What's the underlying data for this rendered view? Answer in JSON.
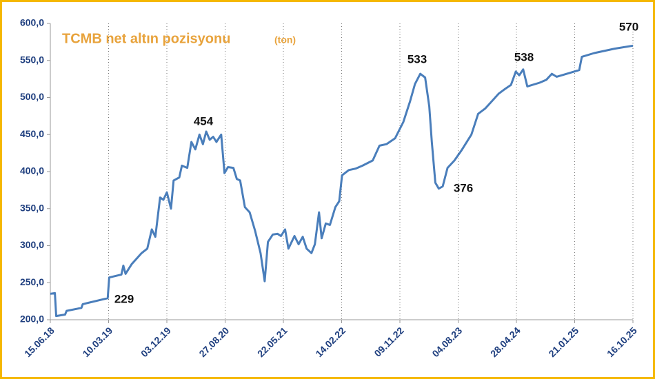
{
  "chart_data": {
    "type": "line",
    "title": "TCMB net altın pozisyonu",
    "subtitle": "(ton)",
    "x": [
      "2018-06-15",
      "2018-07-06",
      "2018-07-12",
      "2018-08-22",
      "2018-08-29",
      "2018-11-05",
      "2018-11-11",
      "2019-02-18",
      "2019-03-06",
      "2019-03-13",
      "2019-05-08",
      "2019-05-17",
      "2019-05-27",
      "2019-06-24",
      "2019-08-09",
      "2019-09-04",
      "2019-09-25",
      "2019-10-11",
      "2019-11-02",
      "2019-11-17",
      "2019-12-03",
      "2019-12-22",
      "2020-01-03",
      "2020-01-29",
      "2020-02-10",
      "2020-03-06",
      "2020-03-25",
      "2020-04-12",
      "2020-05-01",
      "2020-05-17",
      "2020-06-01",
      "2020-06-17",
      "2020-07-03",
      "2020-07-18",
      "2020-08-09",
      "2020-08-24",
      "2020-09-09",
      "2020-10-04",
      "2020-10-20",
      "2020-11-04",
      "2020-11-26",
      "2020-12-18",
      "2021-01-12",
      "2021-02-06",
      "2021-02-25",
      "2021-03-12",
      "2021-04-03",
      "2021-04-25",
      "2021-05-11",
      "2021-05-30",
      "2021-06-14",
      "2021-07-12",
      "2021-07-31",
      "2021-08-19",
      "2021-09-06",
      "2021-09-28",
      "2021-10-14",
      "2021-11-02",
      "2021-11-14",
      "2021-12-03",
      "2021-12-22",
      "2022-01-16",
      "2022-02-03",
      "2022-02-16",
      "2022-03-19",
      "2022-04-19",
      "2022-05-21",
      "2022-07-07",
      "2022-08-07",
      "2022-09-08",
      "2022-10-18",
      "2022-11-25",
      "2022-12-26",
      "2023-01-17",
      "2023-02-11",
      "2023-03-05",
      "2023-03-24",
      "2023-04-05",
      "2023-04-21",
      "2023-05-07",
      "2023-05-25",
      "2023-06-16",
      "2023-07-18",
      "2023-08-18",
      "2023-10-04",
      "2023-11-04",
      "2023-12-06",
      "2024-01-06",
      "2024-02-06",
      "2024-03-09",
      "2024-04-03",
      "2024-04-25",
      "2024-05-11",
      "2024-05-29",
      "2024-06-17",
      "2024-08-13",
      "2024-09-13",
      "2024-10-08",
      "2024-10-30",
      "2024-12-16",
      "2025-02-11",
      "2025-02-23",
      "2025-04-21",
      "2025-07-24",
      "2025-10-16"
    ],
    "series": [
      {
        "name": "TCMB net altın pozisyonu",
        "color": "#4a7ebb",
        "values": [
          235,
          236,
          205,
          207,
          212,
          216,
          221,
          228,
          229,
          257,
          261,
          273,
          262,
          275,
          290,
          296,
          322,
          312,
          365,
          362,
          372,
          350,
          388,
          392,
          408,
          405,
          440,
          430,
          450,
          437,
          454,
          443,
          447,
          440,
          450,
          398,
          406,
          405,
          390,
          388,
          352,
          345,
          320,
          290,
          252,
          305,
          315,
          316,
          313,
          322,
          296,
          313,
          302,
          312,
          296,
          290,
          302,
          345,
          310,
          330,
          328,
          352,
          360,
          395,
          402,
          404,
          408,
          415,
          435,
          437,
          445,
          467,
          495,
          518,
          532,
          527,
          488,
          440,
          385,
          377,
          380,
          405,
          415,
          428,
          450,
          478,
          485,
          495,
          505,
          512,
          517,
          535,
          530,
          538,
          515,
          520,
          524,
          532,
          528,
          532,
          537,
          555,
          560,
          566,
          570
        ]
      }
    ],
    "annotations": [
      "229",
      "454",
      "533",
      "376",
      "538",
      "570"
    ],
    "xlim": [
      "2018-06-15",
      "2025-10-16"
    ],
    "xticks": [
      {
        "value": "2018-06-15",
        "label": "15.06.18"
      },
      {
        "value": "2019-03-10",
        "label": "10.03.19"
      },
      {
        "value": "2019-12-03",
        "label": "03.12.19"
      },
      {
        "value": "2020-08-27",
        "label": "27.08.20"
      },
      {
        "value": "2021-05-22",
        "label": "22.05.21"
      },
      {
        "value": "2022-02-14",
        "label": "14.02.22"
      },
      {
        "value": "2022-11-09",
        "label": "09.11.22"
      },
      {
        "value": "2023-08-04",
        "label": "04.08.23"
      },
      {
        "value": "2024-04-28",
        "label": "28.04.24"
      },
      {
        "value": "2025-01-21",
        "label": "21.01.25"
      },
      {
        "value": "2025-10-16",
        "label": "16.10.25"
      }
    ],
    "ylim": [
      200,
      600
    ],
    "yticks": [
      {
        "value": 200,
        "label": "200,0"
      },
      {
        "value": 250,
        "label": "250,0"
      },
      {
        "value": 300,
        "label": "300,0"
      },
      {
        "value": 350,
        "label": "350,0"
      },
      {
        "value": 400,
        "label": "400,0"
      },
      {
        "value": 450,
        "label": "450,0"
      },
      {
        "value": 500,
        "label": "500,0"
      },
      {
        "value": 550,
        "label": "550,0"
      },
      {
        "value": 600,
        "label": "600,0"
      }
    ],
    "x_grid": true
  }
}
